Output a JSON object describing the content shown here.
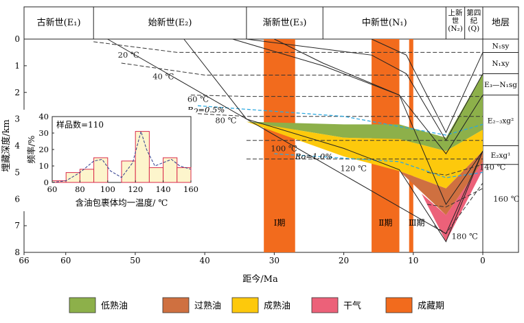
{
  "chart_data": {
    "type": "burial-history",
    "xlabel": "距今/Ma",
    "ylabel": "埋藏深度/km",
    "xlim": [
      66,
      0
    ],
    "ylim": [
      0,
      8
    ],
    "x_ticks": [
      66,
      60,
      50,
      40,
      30,
      20,
      10,
      0
    ],
    "y_ticks": [
      0,
      1,
      2,
      3,
      4,
      5,
      6,
      7,
      8
    ],
    "epochs": [
      {
        "label": "古新世(E₁)",
        "start": 66,
        "end": 56
      },
      {
        "label": "始新世(E₂)",
        "start": 56,
        "end": 34
      },
      {
        "label": "渐新世(E₃)",
        "start": 34,
        "end": 23
      },
      {
        "label": "中新世(N₁)",
        "start": 23,
        "end": 5.3
      },
      {
        "label": "上新世(N₂)",
        "start": 5.3,
        "end": 2.6
      },
      {
        "label": "第四纪(Q)",
        "start": 2.6,
        "end": 0
      }
    ],
    "strata_header": "地层",
    "strata": [
      {
        "label": "N₁sy",
        "top": 0,
        "bottom": 0.5
      },
      {
        "label": "N₁xy",
        "top": 0.5,
        "bottom": 1.3
      },
      {
        "label": "E₃—N₁sg",
        "top": 1.3,
        "bottom": 2.1
      },
      {
        "label": "E₂₋₃xg²",
        "top": 2.1,
        "bottom": 4
      },
      {
        "label": "E₂xg¹",
        "top": 4,
        "bottom": 4.7
      }
    ],
    "charging_periods": [
      {
        "label": "Ⅰ期",
        "start": 31.5,
        "end": 27
      },
      {
        "label": "Ⅱ期",
        "start": 16,
        "end": 12
      },
      {
        "label": "Ⅲ期",
        "start": 10.6,
        "end": 10
      }
    ],
    "burial_lines": [
      {
        "x": [
          54,
          5.3,
          0
        ],
        "y": [
          0,
          7.3,
          4.2
        ]
      },
      {
        "x": [
          43,
          34,
          20,
          12,
          5.3,
          0
        ],
        "y": [
          0,
          3,
          4.1,
          4.9,
          7.6,
          4.2
        ]
      },
      {
        "x": [
          36,
          23,
          12,
          5.3,
          0
        ],
        "y": [
          0,
          1,
          2.1,
          6.2,
          4.2
        ]
      },
      {
        "x": [
          34,
          16,
          11,
          5.3,
          0
        ],
        "y": [
          0,
          0.6,
          1.3,
          3.8,
          1.3
        ]
      },
      {
        "x": [
          30,
          23,
          12,
          5.3,
          0
        ],
        "y": [
          0,
          0.9,
          2.1,
          4.3,
          2.1
        ]
      },
      {
        "x": [
          16,
          11,
          5.3,
          0
        ],
        "y": [
          0,
          0.6,
          3.5,
          0.5
        ]
      }
    ],
    "isotherms": [
      {
        "label": "20 ℃",
        "x": [
          56,
          44,
          5.3,
          0
        ],
        "y": [
          0.1,
          0.5,
          0.5,
          0.5
        ]
      },
      {
        "label": "40 ℃",
        "x": [
          52,
          40,
          5.3,
          0
        ],
        "y": [
          0.9,
          1.35,
          1.35,
          1.35
        ]
      },
      {
        "label": "60 ℃",
        "x": [
          42,
          34,
          5.3,
          0
        ],
        "y": [
          2.1,
          2.15,
          2.15,
          2.15
        ]
      },
      {
        "label": "80 ℃",
        "x": [
          41,
          34,
          5.3,
          0
        ],
        "y": [
          2.8,
          2.9,
          2.9,
          2.9
        ]
      },
      {
        "label": "100 ℃",
        "x": [
          34,
          5.3,
          0
        ],
        "y": [
          3.8,
          3.8,
          3.8
        ]
      },
      {
        "label": "120 ℃",
        "x": [
          34,
          5.3,
          0
        ],
        "y": [
          4.5,
          4.5,
          4.5
        ]
      },
      {
        "label": "140 ℃",
        "x": [
          8,
          5.3,
          0
        ],
        "y": [
          5.0,
          5.1,
          4.7
        ]
      },
      {
        "label": "160 ℃",
        "x": [
          8,
          5.3,
          0
        ],
        "y": [
          6.2,
          6.3,
          5.6
        ]
      },
      {
        "label": "180 ℃",
        "x": [
          7,
          5.3,
          0
        ],
        "y": [
          7.0,
          7.3,
          5.4
        ]
      }
    ],
    "ro_lines": [
      {
        "label": "Ro=0.5%",
        "color": "#2aa8e0",
        "x": [
          41,
          20,
          5.3,
          0
        ],
        "y": [
          2.5,
          2.9,
          3.6,
          3.2
        ]
      },
      {
        "label": "Ro=1.0%",
        "color": "#2aa8e0",
        "x": [
          30,
          12,
          5.3,
          0
        ],
        "y": [
          4.3,
          4.6,
          5.2,
          5.0
        ]
      }
    ],
    "zones": [
      {
        "name": "低熟油",
        "color": "#8db04a"
      },
      {
        "name": "过熟油",
        "color": "#cf7040"
      },
      {
        "name": "成熟油",
        "color": "#fdc90c"
      },
      {
        "name": "干气",
        "color": "#ec6179"
      },
      {
        "name": "成藏期",
        "color": "#f26b1d"
      }
    ],
    "inset": {
      "type": "histogram",
      "title": "样品数=110",
      "xlabel": "含油包裹体均一温度/ ℃",
      "ylabel": "频率/%",
      "xlim": [
        60,
        160
      ],
      "ylim": [
        0,
        40
      ],
      "x_ticks": [
        60,
        80,
        100,
        120,
        140,
        160
      ],
      "y_ticks": [
        0,
        10,
        20,
        30,
        40
      ],
      "bins": [
        {
          "start": 60,
          "end": 70,
          "value": 1
        },
        {
          "start": 70,
          "end": 80,
          "value": 6
        },
        {
          "start": 80,
          "end": 90,
          "value": 8
        },
        {
          "start": 90,
          "end": 100,
          "value": 15
        },
        {
          "start": 100,
          "end": 110,
          "value": 0
        },
        {
          "start": 110,
          "end": 120,
          "value": 13
        },
        {
          "start": 120,
          "end": 130,
          "value": 31
        },
        {
          "start": 130,
          "end": 140,
          "value": 9
        },
        {
          "start": 140,
          "end": 150,
          "value": 15
        },
        {
          "start": 150,
          "end": 160,
          "value": 9
        }
      ],
      "curve": [
        [
          60,
          0
        ],
        [
          70,
          1
        ],
        [
          80,
          6
        ],
        [
          90,
          13
        ],
        [
          96,
          14
        ],
        [
          102,
          7
        ],
        [
          110,
          3
        ],
        [
          118,
          12
        ],
        [
          124,
          31
        ],
        [
          128,
          20
        ],
        [
          134,
          10
        ],
        [
          140,
          12
        ],
        [
          146,
          14
        ],
        [
          152,
          10
        ],
        [
          160,
          8
        ]
      ]
    }
  }
}
